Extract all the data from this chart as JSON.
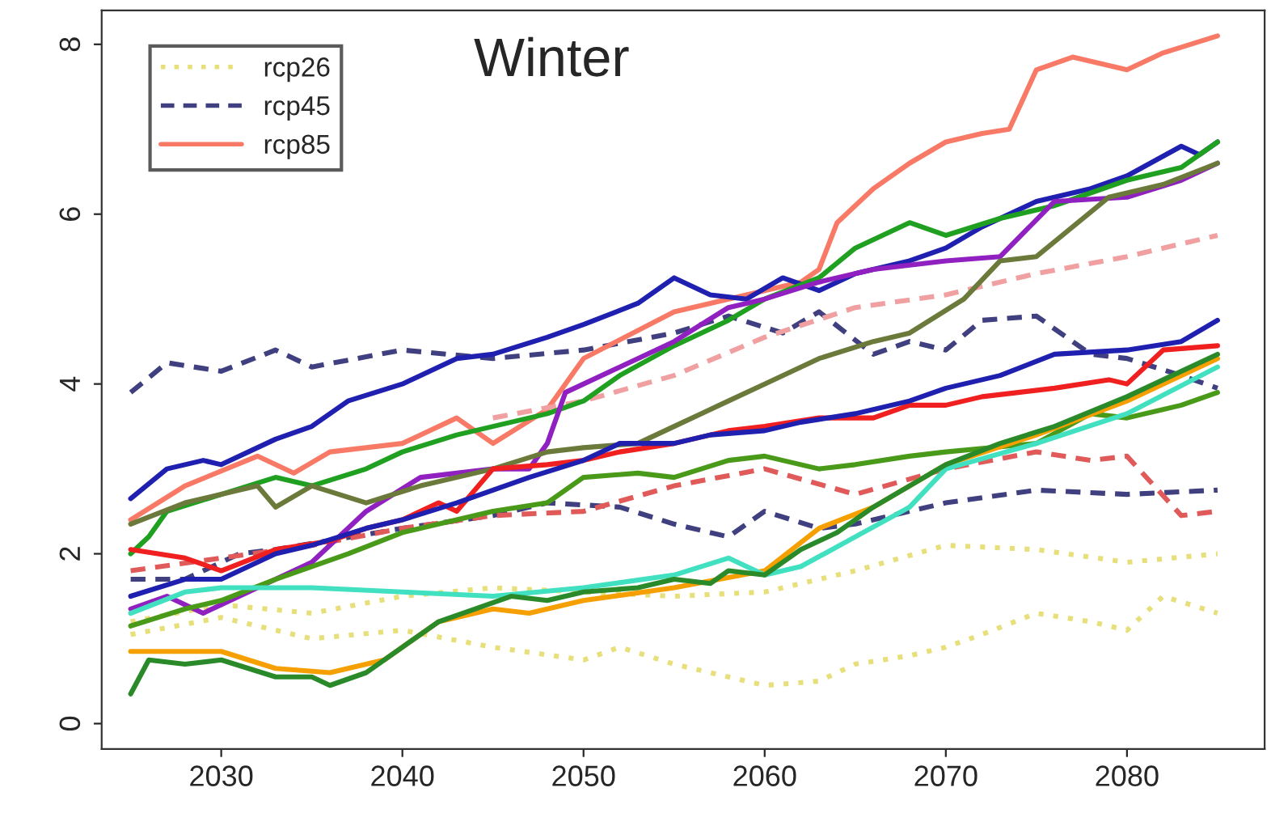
{
  "chart_data": {
    "type": "line",
    "title": "Winter",
    "xlim": [
      2023.4,
      2087.6
    ],
    "ylim": [
      -0.3,
      8.4
    ],
    "xticks": [
      2030,
      2040,
      2050,
      2060,
      2070,
      2080
    ],
    "yticks": [
      0,
      2,
      4,
      6,
      8
    ],
    "grid": false,
    "legend": "top left",
    "marker": "none",
    "series": [
      {
        "name": "rcp26",
        "color": "#e6df7a",
        "line_style": "dotted",
        "x": [
          2025,
          2030,
          2035,
          2040,
          2045,
          2050,
          2052,
          2055,
          2058,
          2060,
          2063,
          2065,
          2068,
          2070,
          2072,
          2075,
          2078,
          2080,
          2082,
          2085
        ],
        "values": [
          1.05,
          1.25,
          1.0,
          1.1,
          0.9,
          0.75,
          0.9,
          0.7,
          0.55,
          0.45,
          0.5,
          0.7,
          0.8,
          0.9,
          1.05,
          1.3,
          1.2,
          1.1,
          1.5,
          1.3
        ]
      },
      {
        "name": "rcp45",
        "color": "#404080",
        "line_style": "dashed",
        "x": [
          2025,
          2027,
          2030,
          2033,
          2035,
          2040,
          2045,
          2050,
          2055,
          2058,
          2061,
          2063,
          2066,
          2068,
          2070,
          2072,
          2075,
          2078,
          2080,
          2083,
          2085
        ],
        "values": [
          3.9,
          4.25,
          4.15,
          4.4,
          4.2,
          4.4,
          4.3,
          4.4,
          4.6,
          4.8,
          4.6,
          4.85,
          4.35,
          4.5,
          4.4,
          4.75,
          4.8,
          4.35,
          4.3,
          4.1,
          3.95
        ]
      },
      {
        "name": "rcp85",
        "color": "#f87a66",
        "line_style": "solid",
        "x": [
          2025,
          2028,
          2032,
          2034,
          2036,
          2040,
          2043,
          2045,
          2048,
          2050,
          2055,
          2058,
          2062,
          2063,
          2064,
          2066,
          2068,
          2070,
          2072,
          2073.5,
          2075,
          2077,
          2080,
          2082,
          2085
        ],
        "values": [
          2.4,
          2.8,
          3.15,
          2.95,
          3.2,
          3.3,
          3.6,
          3.3,
          3.7,
          4.3,
          4.85,
          5.0,
          5.2,
          5.35,
          5.9,
          6.3,
          6.6,
          6.85,
          6.95,
          7.0,
          7.7,
          7.85,
          7.7,
          7.9,
          8.1
        ]
      },
      {
        "color": "#e6df7a",
        "line_style": "dotted",
        "x": [
          2025,
          2030,
          2035,
          2040,
          2045,
          2050,
          2055,
          2060,
          2065,
          2070,
          2075,
          2080,
          2085
        ],
        "values": [
          1.2,
          1.4,
          1.3,
          1.5,
          1.6,
          1.55,
          1.5,
          1.55,
          1.8,
          2.1,
          2.05,
          1.9,
          2.0
        ]
      },
      {
        "color": "#404080",
        "line_style": "dashed",
        "x": [
          2025,
          2028,
          2031,
          2033,
          2040,
          2045,
          2048,
          2052,
          2055,
          2058,
          2060,
          2063,
          2065,
          2068,
          2070,
          2075,
          2080,
          2085
        ],
        "values": [
          1.7,
          1.7,
          2.0,
          2.05,
          2.3,
          2.45,
          2.6,
          2.55,
          2.35,
          2.2,
          2.5,
          2.3,
          2.35,
          2.5,
          2.6,
          2.75,
          2.7,
          2.75
        ]
      },
      {
        "color": "#e05a5a",
        "line_style": "dashed",
        "x": [
          2025,
          2030,
          2035,
          2040,
          2045,
          2050,
          2055,
          2060,
          2065,
          2070,
          2075,
          2078,
          2080,
          2083,
          2085
        ],
        "values": [
          1.8,
          1.95,
          2.1,
          2.3,
          2.45,
          2.5,
          2.8,
          3.0,
          2.7,
          3.0,
          3.2,
          3.1,
          3.15,
          2.45,
          2.5
        ]
      },
      {
        "color": "#f0a0a0",
        "line_style": "dashed",
        "x": [
          2045,
          2050,
          2055,
          2060,
          2065,
          2070,
          2075,
          2080,
          2085
        ],
        "values": [
          3.6,
          3.8,
          4.1,
          4.55,
          4.9,
          5.05,
          5.3,
          5.5,
          5.75
        ]
      },
      {
        "color": "#2020b0",
        "line_style": "solid",
        "x": [
          2025,
          2027,
          2029,
          2030,
          2033,
          2035,
          2037,
          2040,
          2043,
          2045,
          2048,
          2050,
          2053,
          2055,
          2057,
          2059,
          2061,
          2063,
          2065,
          2068,
          2070,
          2072,
          2075,
          2078,
          2080,
          2083,
          2084,
          2085
        ],
        "values": [
          2.65,
          3.0,
          3.1,
          3.05,
          3.35,
          3.5,
          3.8,
          4.0,
          4.3,
          4.35,
          4.55,
          4.7,
          4.95,
          5.25,
          5.05,
          5.0,
          5.25,
          5.1,
          5.3,
          5.45,
          5.6,
          5.85,
          6.15,
          6.3,
          6.45,
          6.8,
          6.7,
          6.85
        ]
      },
      {
        "color": "#20a020",
        "line_style": "solid",
        "x": [
          2025,
          2026,
          2027,
          2030,
          2033,
          2035,
          2038,
          2040,
          2043,
          2045,
          2048,
          2050,
          2052,
          2055,
          2058,
          2060,
          2063,
          2065,
          2068,
          2070,
          2073,
          2076,
          2080,
          2083,
          2085
        ],
        "values": [
          2.0,
          2.2,
          2.5,
          2.7,
          2.9,
          2.8,
          3.0,
          3.2,
          3.4,
          3.5,
          3.65,
          3.8,
          4.1,
          4.45,
          4.75,
          5.0,
          5.25,
          5.6,
          5.9,
          5.75,
          5.95,
          6.1,
          6.4,
          6.55,
          6.85
        ]
      },
      {
        "color": "#9020c0",
        "line_style": "solid",
        "x": [
          2025,
          2027,
          2029,
          2031,
          2035,
          2038,
          2041,
          2045,
          2047,
          2048,
          2049,
          2052,
          2055,
          2058,
          2060,
          2063,
          2066,
          2070,
          2073,
          2076,
          2080,
          2083,
          2085
        ],
        "values": [
          1.35,
          1.5,
          1.3,
          1.5,
          1.9,
          2.5,
          2.9,
          3.0,
          3.0,
          3.3,
          3.9,
          4.2,
          4.5,
          4.9,
          5.0,
          5.2,
          5.35,
          5.45,
          5.5,
          6.15,
          6.2,
          6.4,
          6.6
        ]
      },
      {
        "color": "#6b7a3a",
        "line_style": "solid",
        "x": [
          2025,
          2028,
          2032,
          2033,
          2035,
          2038,
          2041,
          2045,
          2048,
          2050,
          2053,
          2055,
          2058,
          2060,
          2063,
          2066,
          2068,
          2071,
          2073,
          2075,
          2079,
          2082,
          2085
        ],
        "values": [
          2.35,
          2.6,
          2.8,
          2.55,
          2.8,
          2.6,
          2.8,
          3.0,
          3.2,
          3.25,
          3.3,
          3.5,
          3.8,
          4.0,
          4.3,
          4.5,
          4.6,
          5.0,
          5.45,
          5.5,
          6.2,
          6.35,
          6.6
        ]
      },
      {
        "color": "#f02020",
        "line_style": "solid",
        "x": [
          2025,
          2028,
          2030,
          2033,
          2036,
          2038,
          2040,
          2042,
          2043,
          2045,
          2048,
          2050,
          2052,
          2055,
          2058,
          2060,
          2063,
          2066,
          2068,
          2070,
          2072,
          2074,
          2076,
          2079,
          2080,
          2082,
          2085
        ],
        "values": [
          2.05,
          1.95,
          1.8,
          2.05,
          2.15,
          2.3,
          2.4,
          2.6,
          2.5,
          3.0,
          3.05,
          3.1,
          3.2,
          3.3,
          3.45,
          3.5,
          3.6,
          3.6,
          3.75,
          3.75,
          3.85,
          3.9,
          3.95,
          4.05,
          4.0,
          4.4,
          4.45
        ]
      },
      {
        "color": "#2020b0",
        "line_style": "solid",
        "x": [
          2025,
          2028,
          2030,
          2033,
          2035,
          2038,
          2040,
          2043,
          2045,
          2047,
          2050,
          2052,
          2055,
          2057,
          2060,
          2062,
          2065,
          2068,
          2070,
          2073,
          2076,
          2080,
          2083,
          2085
        ],
        "values": [
          1.5,
          1.7,
          1.7,
          2.0,
          2.1,
          2.3,
          2.4,
          2.6,
          2.75,
          2.9,
          3.1,
          3.3,
          3.3,
          3.4,
          3.45,
          3.55,
          3.65,
          3.8,
          3.95,
          4.1,
          4.35,
          4.4,
          4.5,
          4.75
        ]
      },
      {
        "color": "#4a9a1a",
        "line_style": "solid",
        "x": [
          2025,
          2028,
          2030,
          2033,
          2035,
          2037,
          2040,
          2043,
          2045,
          2048,
          2050,
          2053,
          2055,
          2058,
          2060,
          2063,
          2065,
          2068,
          2070,
          2075,
          2078,
          2080,
          2083,
          2085
        ],
        "values": [
          1.15,
          1.35,
          1.45,
          1.7,
          1.85,
          2.0,
          2.25,
          2.4,
          2.5,
          2.6,
          2.9,
          2.95,
          2.9,
          3.1,
          3.15,
          3.0,
          3.05,
          3.15,
          3.2,
          3.3,
          3.65,
          3.6,
          3.75,
          3.9
        ]
      },
      {
        "color": "#f5a000",
        "line_style": "solid",
        "x": [
          2025,
          2028,
          2030,
          2033,
          2036,
          2039,
          2042,
          2045,
          2047,
          2050,
          2055,
          2060,
          2063,
          2066,
          2070,
          2075,
          2080,
          2085
        ],
        "values": [
          0.85,
          0.85,
          0.85,
          0.65,
          0.6,
          0.75,
          1.2,
          1.35,
          1.3,
          1.45,
          1.6,
          1.8,
          2.3,
          2.55,
          3.05,
          3.4,
          3.8,
          4.3
        ]
      },
      {
        "color": "#40e0c0",
        "line_style": "solid",
        "x": [
          2025,
          2028,
          2030,
          2035,
          2040,
          2045,
          2050,
          2055,
          2058,
          2060,
          2062,
          2065,
          2068,
          2070,
          2075,
          2080,
          2085
        ],
        "values": [
          1.3,
          1.55,
          1.6,
          1.6,
          1.55,
          1.5,
          1.6,
          1.75,
          1.95,
          1.75,
          1.85,
          2.2,
          2.55,
          3.0,
          3.3,
          3.65,
          4.2
        ]
      },
      {
        "color": "#2a8a2a",
        "line_style": "solid",
        "x": [
          2025,
          2026,
          2028,
          2030,
          2033,
          2035,
          2036,
          2038,
          2040,
          2042,
          2044,
          2046,
          2048,
          2050,
          2053,
          2055,
          2057,
          2058,
          2060,
          2062,
          2064,
          2066,
          2068,
          2070,
          2073,
          2076,
          2080,
          2085
        ],
        "values": [
          0.35,
          0.75,
          0.7,
          0.75,
          0.55,
          0.55,
          0.45,
          0.6,
          0.9,
          1.2,
          1.35,
          1.5,
          1.45,
          1.55,
          1.6,
          1.7,
          1.65,
          1.8,
          1.75,
          2.05,
          2.25,
          2.55,
          2.8,
          3.05,
          3.3,
          3.5,
          3.85,
          4.35
        ]
      }
    ]
  }
}
